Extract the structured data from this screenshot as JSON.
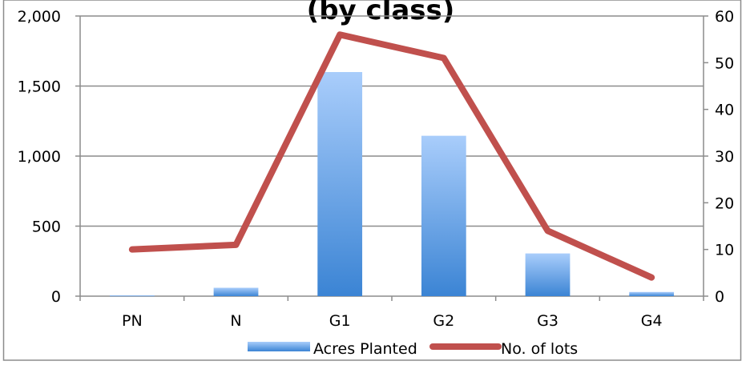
{
  "chart_data": {
    "type": "bar",
    "title": "(by class)",
    "categories": [
      "PN",
      "N",
      "G1",
      "G2",
      "G3",
      "G4"
    ],
    "series": [
      {
        "name": "Acres Planted",
        "type": "bar",
        "axis": "left",
        "values": [
          5,
          60,
          1600,
          1145,
          305,
          30
        ]
      },
      {
        "name": "No. of lots",
        "type": "line",
        "axis": "right",
        "values": [
          10,
          11,
          56,
          51,
          14,
          4
        ]
      }
    ],
    "y_left": {
      "ylim": [
        0,
        2000
      ],
      "ticks": [
        "0",
        "500",
        "1,000",
        "1,500",
        "2,000"
      ],
      "tick_values": [
        0,
        500,
        1000,
        1500,
        2000
      ]
    },
    "y_right": {
      "ylim": [
        0,
        60
      ],
      "ticks": [
        "0",
        "10",
        "20",
        "30",
        "40",
        "50",
        "60"
      ],
      "tick_values": [
        0,
        10,
        20,
        30,
        40,
        50,
        60
      ]
    },
    "grid": true,
    "legend_position": "bottom",
    "colors": {
      "bar_top": "#a9cdfb",
      "bar_bottom": "#3b84d4",
      "line": "#c0504d",
      "grid": "#8c8c8c",
      "axis": "#8c8c8c"
    }
  }
}
